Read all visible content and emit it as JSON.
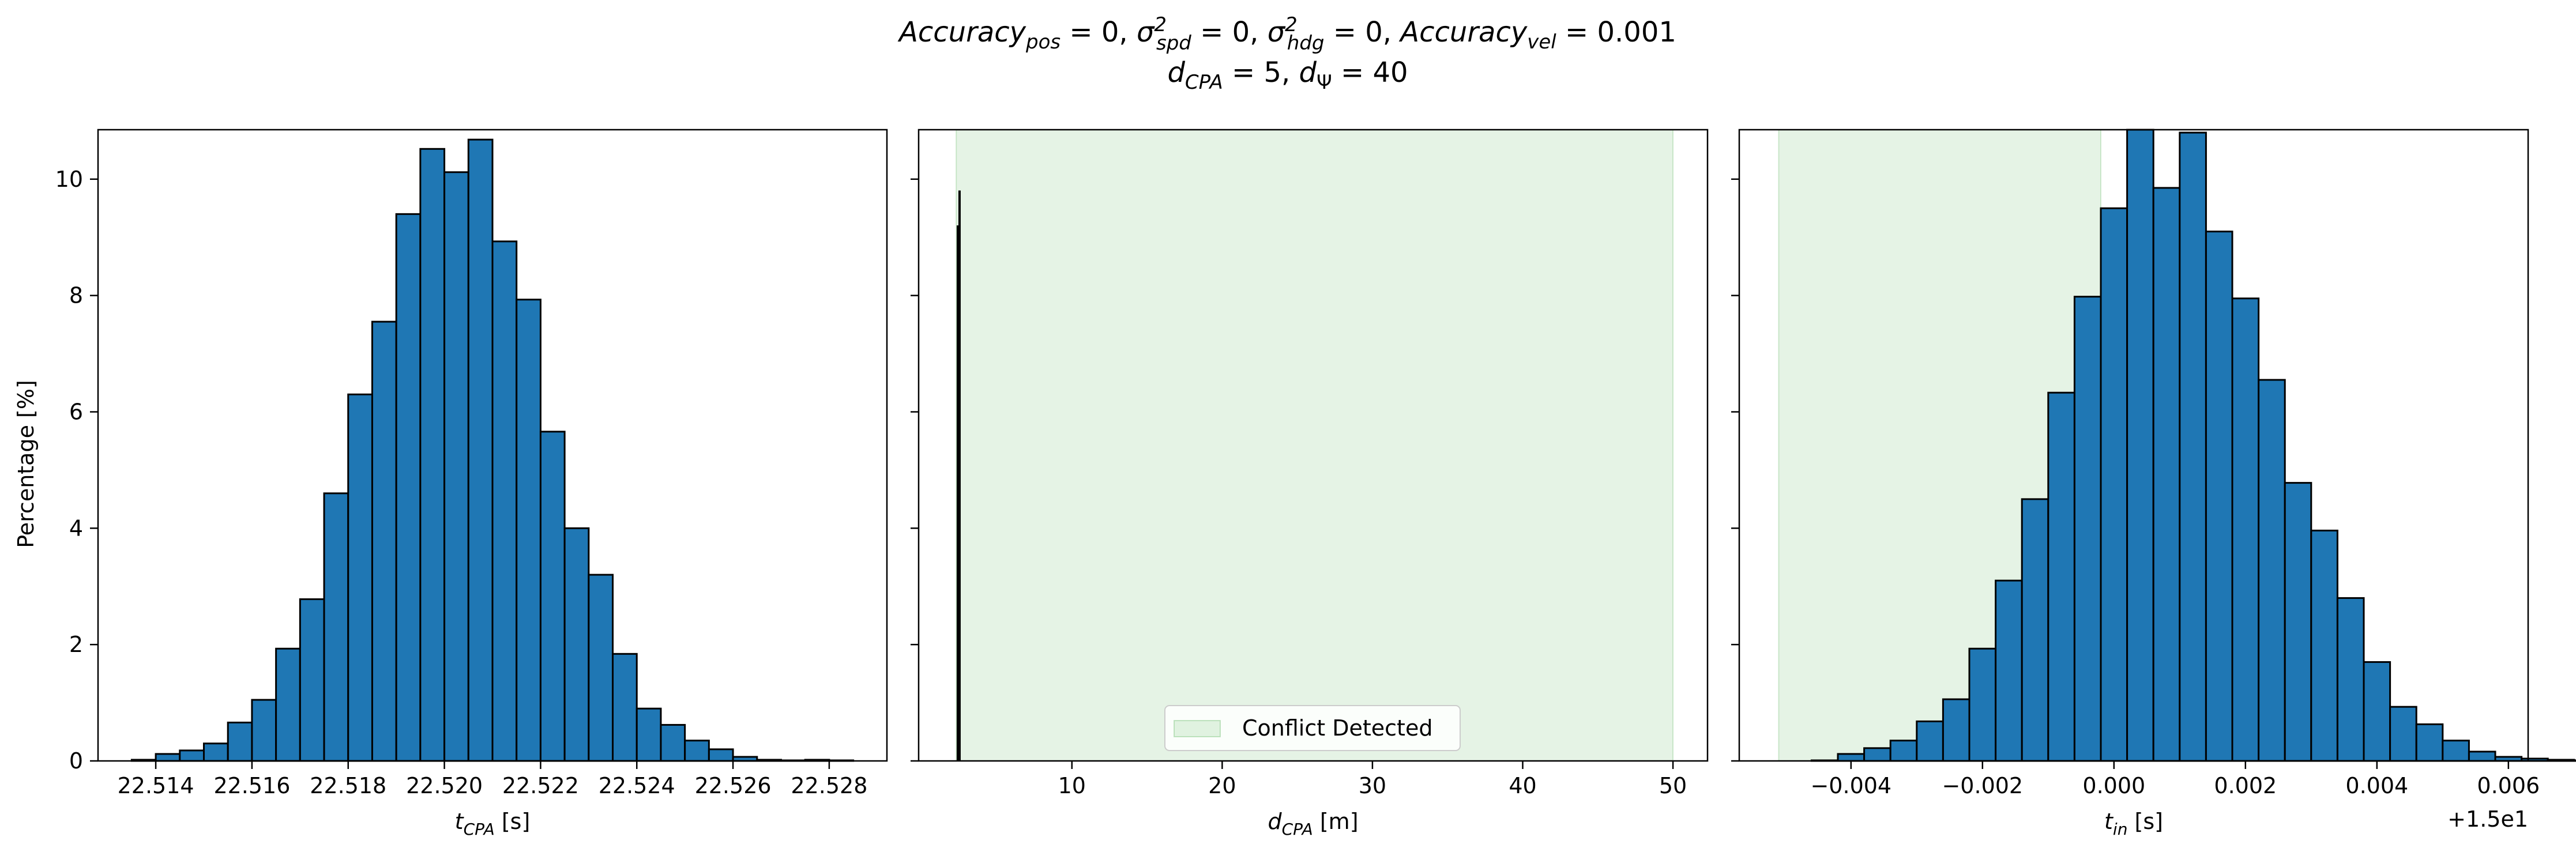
{
  "figure": {
    "title_line1": "Accuracy_pos = 0, σ²_spd = 0, σ²_hdg = 0, Accuracy_vel = 0.001",
    "title_line2": "d_CPA = 5, d_Ψ = 40"
  },
  "chart_data": [
    {
      "type": "bar",
      "panel": "t_cpa",
      "xlabel": "t_CPA [s]",
      "ylabel": "Percentage [%]",
      "xlim": [
        22.5128,
        22.5292
      ],
      "ylim": [
        0,
        10.85
      ],
      "xticks": [
        22.514,
        22.516,
        22.518,
        22.52,
        22.522,
        22.524,
        22.526,
        22.528
      ],
      "xtick_labels": [
        "22.514",
        "22.516",
        "22.518",
        "22.520",
        "22.522",
        "22.524",
        "22.526",
        "22.528"
      ],
      "yticks": [
        0,
        2,
        4,
        6,
        8,
        10
      ],
      "ytick_labels": [
        "0",
        "2",
        "4",
        "6",
        "8",
        "10"
      ],
      "bin_start": 22.5135,
      "bin_width": 0.0005,
      "values": [
        0.02,
        0.12,
        0.18,
        0.3,
        0.66,
        1.05,
        1.93,
        2.78,
        4.6,
        6.3,
        7.55,
        9.4,
        10.52,
        10.12,
        10.68,
        8.93,
        7.93,
        5.66,
        4.0,
        3.2,
        1.84,
        0.9,
        0.62,
        0.35,
        0.2,
        0.07,
        0.02,
        0.01,
        0.02,
        0.01
      ],
      "bar_color": "#1f77b4",
      "edge_color": "#000000"
    },
    {
      "type": "bar",
      "panel": "d_cpa",
      "xlabel": "d_CPA [m]",
      "xlim": [
        -0.2,
        52.3
      ],
      "ylim": [
        0,
        10.85
      ],
      "xticks": [
        10,
        20,
        30,
        40,
        50
      ],
      "xtick_labels": [
        "10",
        "20",
        "30",
        "40",
        "50"
      ],
      "yticks": [
        0,
        2,
        4,
        6,
        8,
        10
      ],
      "shaded_region": [
        2.3,
        50.0
      ],
      "shade_color": "#2ca02c",
      "legend": {
        "label": "Conflict Detected",
        "placement": "lower center"
      },
      "spike_x": 2.35,
      "values": [
        9.2,
        9.8
      ],
      "bar_color": "#1f77b4"
    },
    {
      "type": "bar",
      "panel": "t_in",
      "xlabel": "t_in [s]",
      "offset_label": "+1.5e1",
      "xlim": [
        -0.0057,
        0.0063
      ],
      "ylim": [
        0,
        10.85
      ],
      "xticks": [
        -0.004,
        -0.002,
        0.0,
        0.002,
        0.004,
        0.006
      ],
      "xtick_labels": [
        "−0.004",
        "−0.002",
        "0.000",
        "0.002",
        "0.004",
        "0.006"
      ],
      "yticks": [
        0,
        2,
        4,
        6,
        8,
        10
      ],
      "shaded_region": [
        -0.0051,
        -0.0002
      ],
      "shade_color": "#2ca02c",
      "bin_start": -0.0046,
      "bin_width": 0.0004,
      "values": [
        0.01,
        0.12,
        0.22,
        0.35,
        0.68,
        1.06,
        1.93,
        3.1,
        4.5,
        6.33,
        7.98,
        9.5,
        11.2,
        9.85,
        10.8,
        9.1,
        7.95,
        6.55,
        4.78,
        3.96,
        2.8,
        1.7,
        0.93,
        0.63,
        0.35,
        0.16,
        0.07,
        0.04,
        0.02,
        0.01
      ],
      "bar_color": "#1f77b4",
      "edge_color": "#000000"
    }
  ]
}
